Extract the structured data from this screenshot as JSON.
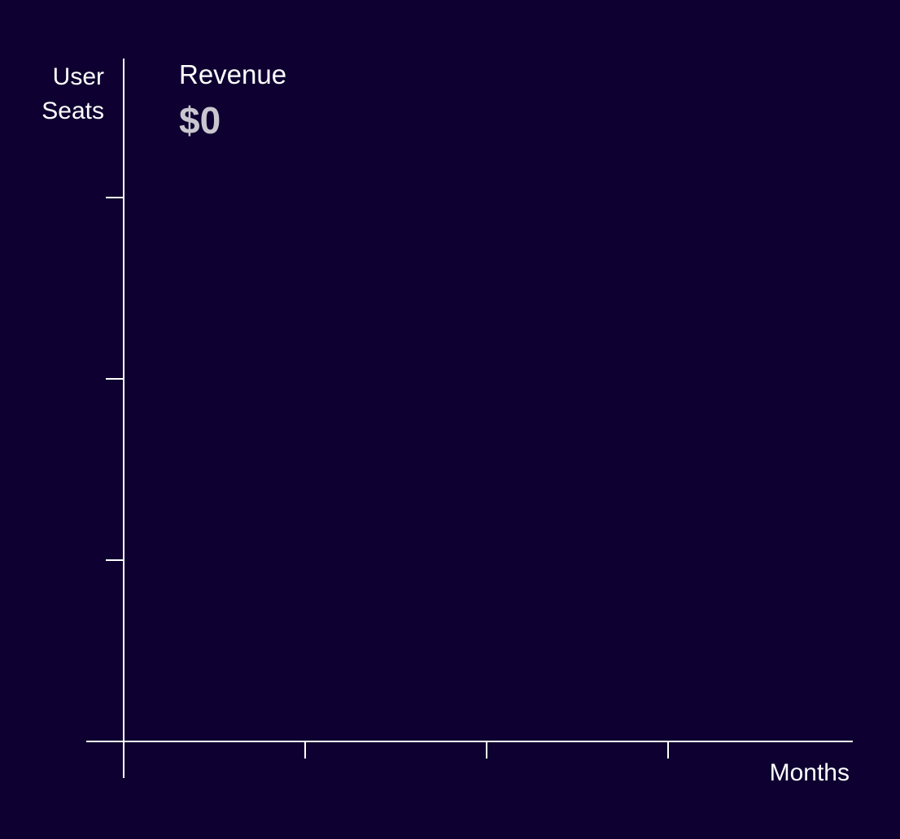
{
  "theme": {
    "background": "#0e0030",
    "axis_color": "#ffffff",
    "text_color": "#ffffff",
    "value_color": "#c9c6cf"
  },
  "chart_data": {
    "type": "line",
    "xlabel": "Months",
    "ylabel_lines": [
      "User",
      "Seats"
    ],
    "x_tick_count": 4,
    "y_tick_count": 3,
    "series": [],
    "grid": false
  },
  "metric": {
    "label": "Revenue",
    "value": "$0"
  }
}
